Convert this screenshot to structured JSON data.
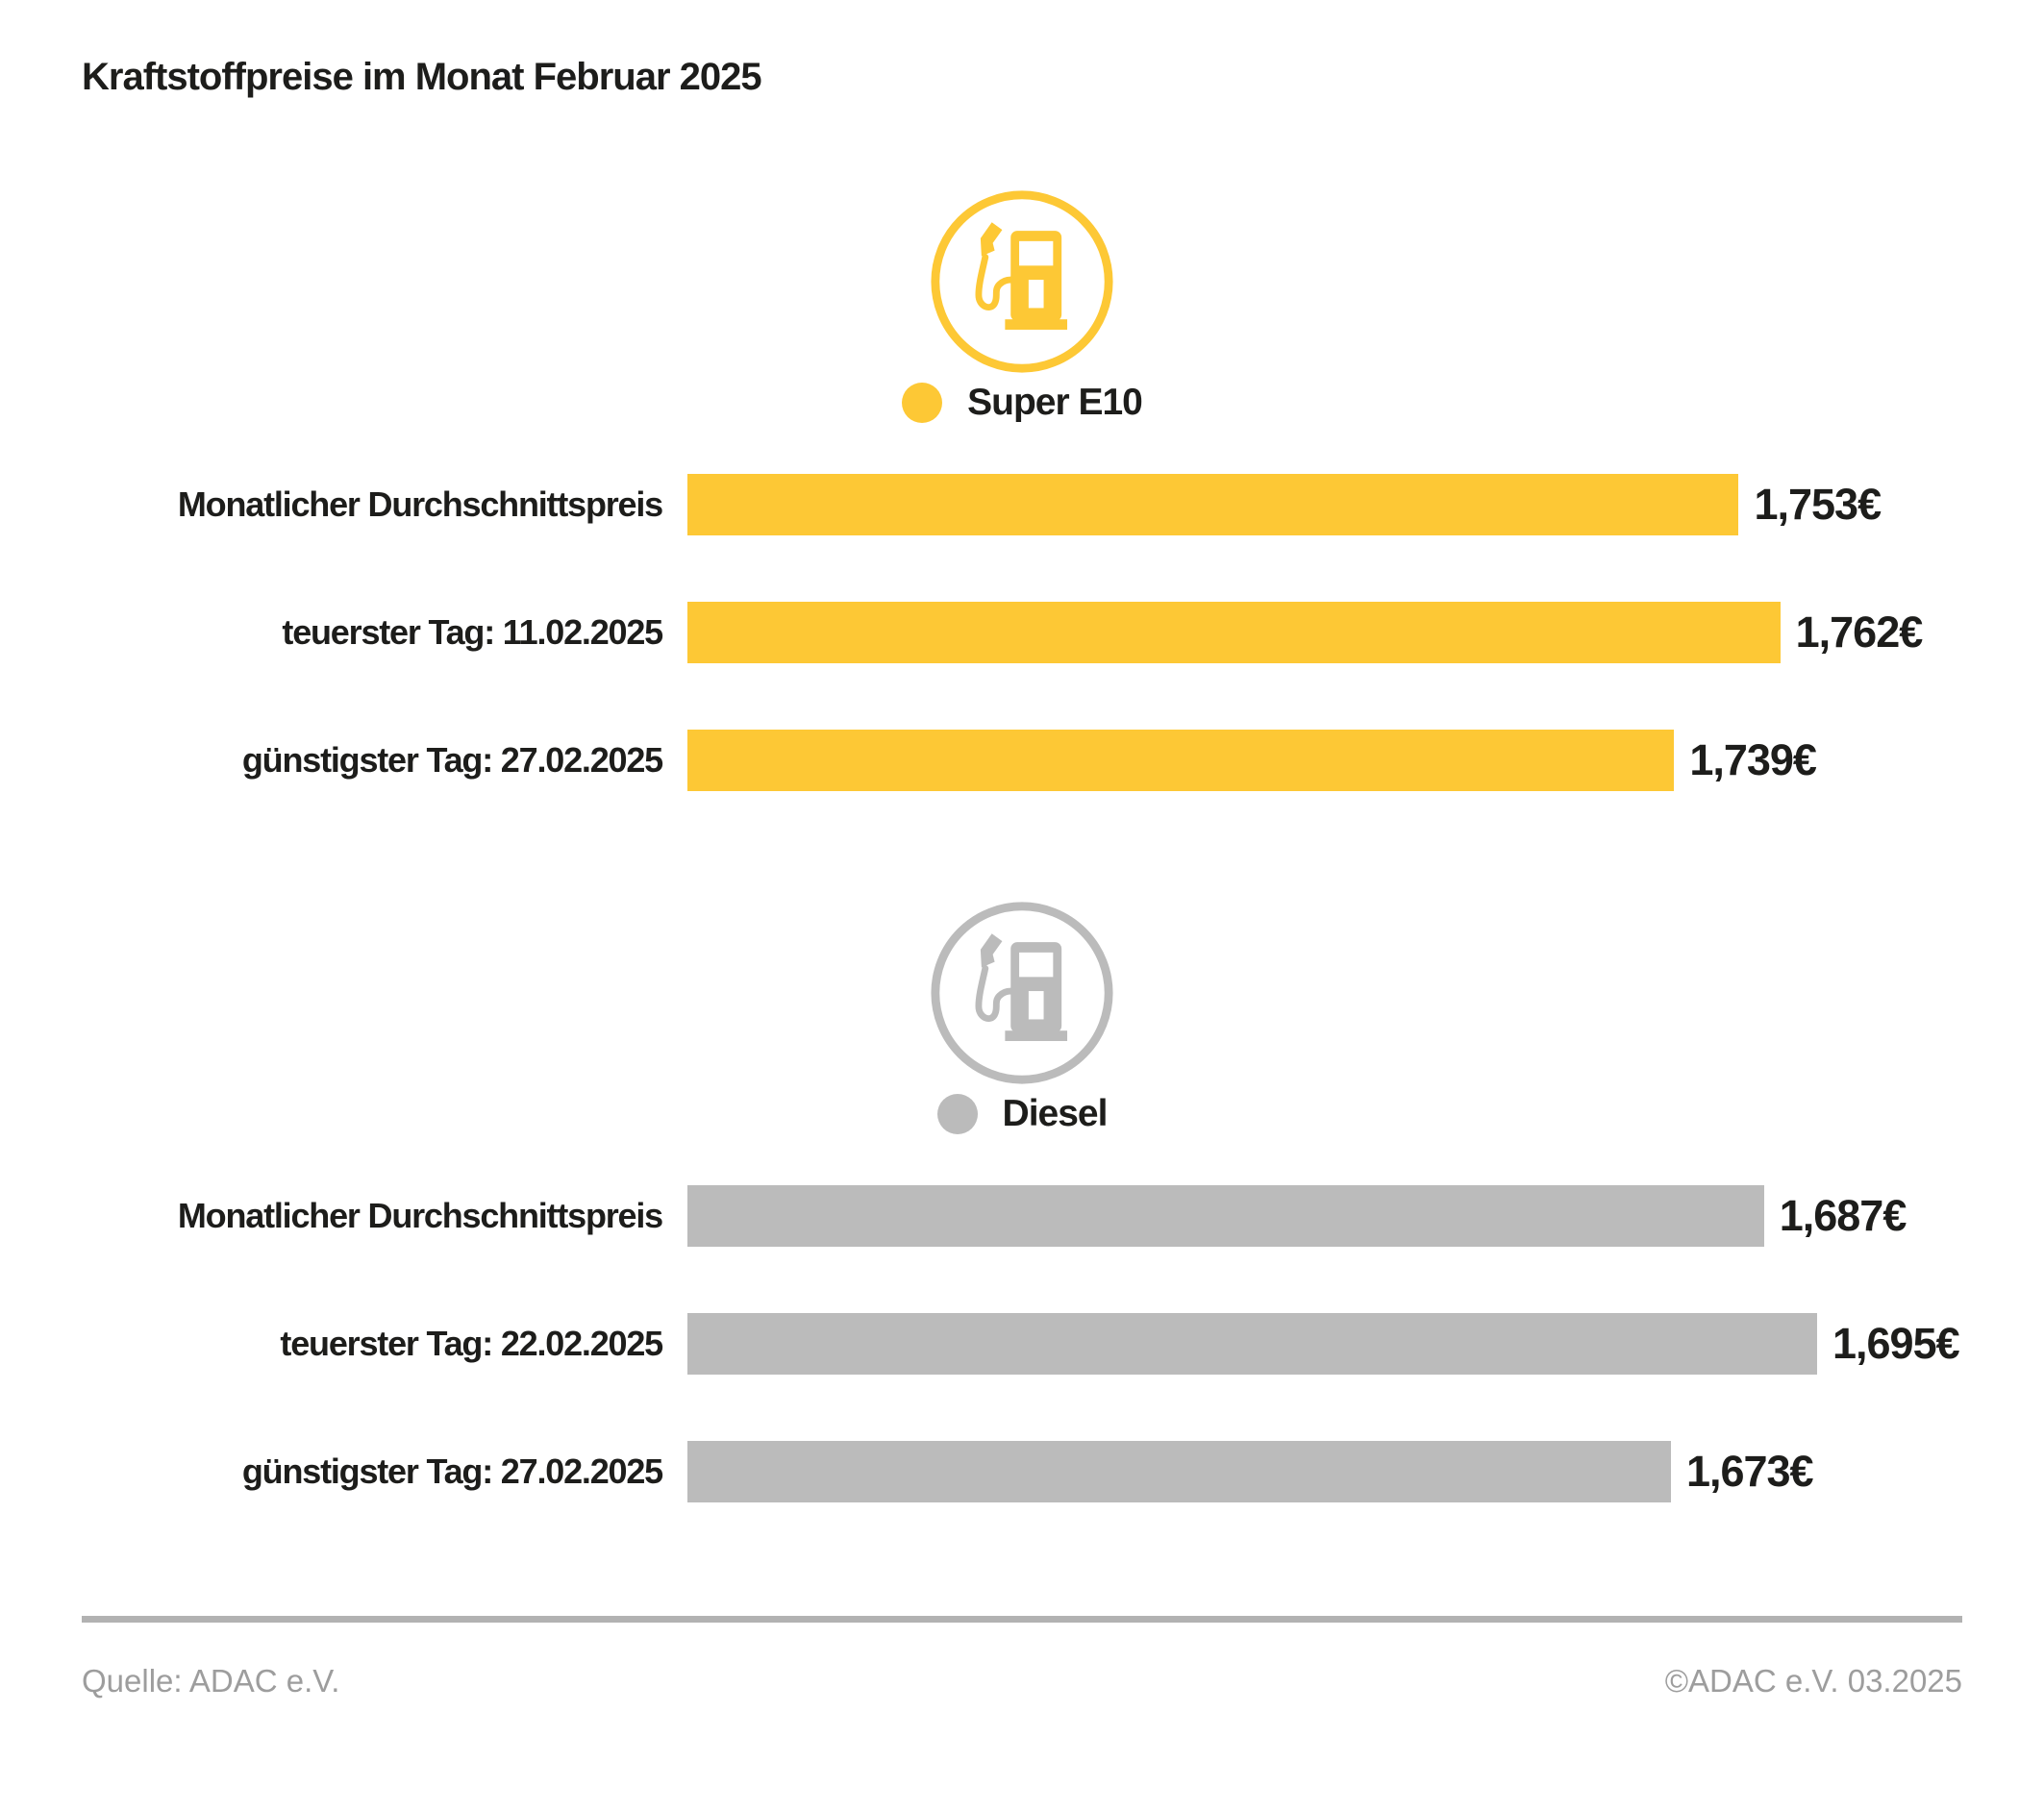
{
  "title": "Kraftstoffpreise im Monat Februar 2025",
  "colors": {
    "super_e10": "#FDC835",
    "diesel": "#BBBBBB",
    "text": "#1D1D1B",
    "footer_text": "#9D9D9D",
    "divider": "#B2B2B2"
  },
  "chart_data": [
    {
      "type": "bar",
      "orientation": "horizontal",
      "legend": "Super E10",
      "icon": "fuel-pump-icon",
      "color": "#FDC835",
      "categories": [
        "Monatlicher Durchschnittspreis",
        "teuerster Tag: 11.02.2025",
        "günstigster Tag: 27.02.2025"
      ],
      "values": [
        1.753,
        1.762,
        1.739
      ],
      "value_labels": [
        "1,753€",
        "1,762€",
        "1,739€"
      ],
      "xlim": [
        1.525,
        1.77
      ],
      "grid": false,
      "legend_position": "top-center"
    },
    {
      "type": "bar",
      "orientation": "horizontal",
      "legend": "Diesel",
      "icon": "fuel-pump-icon",
      "color": "#BBBBBB",
      "categories": [
        "Monatlicher Durchschnittspreis",
        "teuerster Tag: 22.02.2025",
        "günstigster Tag: 27.02.2025"
      ],
      "values": [
        1.687,
        1.695,
        1.673
      ],
      "value_labels": [
        "1,687€",
        "1,695€",
        "1,673€"
      ],
      "xlim": [
        1.525,
        1.695
      ],
      "grid": false,
      "legend_position": "top-center"
    }
  ],
  "footer": {
    "source": "Quelle: ADAC e.V.",
    "copyright": "©ADAC e.V. 03.2025"
  }
}
